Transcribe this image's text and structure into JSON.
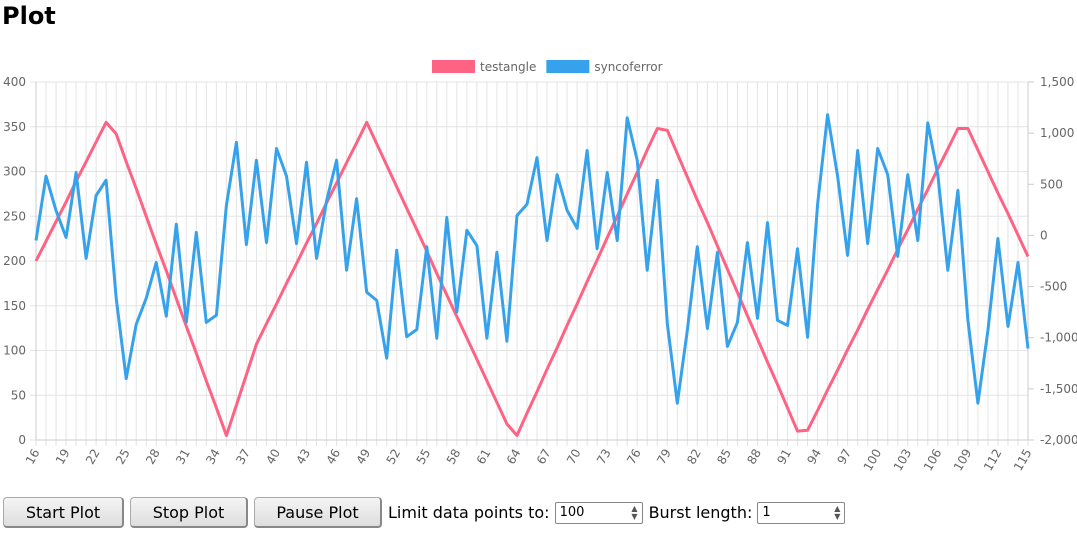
{
  "header": {
    "title": "Plot"
  },
  "chart_data": {
    "type": "line",
    "x": [
      16,
      17,
      18,
      19,
      20,
      21,
      22,
      23,
      24,
      25,
      26,
      27,
      28,
      29,
      30,
      31,
      32,
      33,
      34,
      35,
      36,
      37,
      38,
      39,
      40,
      41,
      42,
      43,
      44,
      45,
      46,
      47,
      48,
      49,
      50,
      51,
      52,
      53,
      54,
      55,
      56,
      57,
      58,
      59,
      60,
      61,
      62,
      63,
      64,
      65,
      66,
      67,
      68,
      69,
      70,
      71,
      72,
      73,
      74,
      75,
      76,
      77,
      78,
      79,
      80,
      81,
      82,
      83,
      84,
      85,
      86,
      87,
      88,
      89,
      90,
      91,
      92,
      93,
      94,
      95,
      96,
      97,
      98,
      99,
      100,
      101,
      102,
      103,
      104,
      105,
      106,
      107,
      108,
      109,
      110,
      111,
      112,
      113,
      114,
      115
    ],
    "xlim": [
      16,
      115
    ],
    "xticks": [
      16,
      19,
      22,
      25,
      28,
      31,
      34,
      37,
      40,
      43,
      46,
      49,
      52,
      55,
      58,
      61,
      64,
      67,
      70,
      73,
      76,
      79,
      82,
      85,
      88,
      91,
      94,
      97,
      100,
      103,
      106,
      109,
      112,
      115
    ],
    "ylim": [
      0,
      400
    ],
    "yticks": [
      0,
      50,
      100,
      150,
      200,
      250,
      300,
      350,
      400
    ],
    "y2lim": [
      -2000,
      1500
    ],
    "y2ticks": [
      {
        "value": -2000,
        "label": "-2,000"
      },
      {
        "value": -1500,
        "label": "-1,500"
      },
      {
        "value": -1000,
        "label": "-1,000"
      },
      -500,
      0,
      500,
      {
        "value": 1000,
        "label": "1,000"
      },
      {
        "value": 1500,
        "label": "1,500"
      }
    ],
    "grid": true,
    "legend": "top",
    "series": [
      {
        "name": "testangle",
        "color": "#ff6384",
        "values": [
          200,
          222,
          244,
          266,
          289,
          311,
          333,
          355,
          342,
          311,
          281,
          250,
          219,
          189,
          158,
          127,
          97,
          66,
          36,
          5,
          39,
          73,
          107,
          130,
          152,
          175,
          197,
          220,
          242,
          265,
          287,
          310,
          332,
          355,
          331,
          307,
          283,
          259,
          235,
          211,
          186,
          162,
          138,
          114,
          90,
          66,
          42,
          18,
          5,
          30,
          54,
          79,
          103,
          128,
          152,
          177,
          201,
          226,
          250,
          275,
          299,
          324,
          348,
          346,
          320,
          294,
          268,
          243,
          217,
          191,
          165,
          139,
          113,
          87,
          62,
          36,
          10,
          11,
          33,
          56,
          78,
          101,
          123,
          146,
          168,
          190,
          213,
          235,
          258,
          280,
          303,
          325,
          348,
          348,
          324,
          300,
          276,
          253,
          229,
          205
        ]
      },
      {
        "name": "syncoferror",
        "color": "#36a2eb",
        "axis": "y2",
        "values": [
          -50,
          580,
          245,
          -20,
          615,
          -225,
          390,
          540,
          -615,
          -1400,
          -870,
          -615,
          -265,
          -790,
          110,
          -850,
          30,
          -850,
          -780,
          295,
          910,
          -90,
          735,
          -70,
          850,
          580,
          -80,
          715,
          -225,
          340,
          735,
          -340,
          360,
          -555,
          -635,
          -1200,
          -145,
          -990,
          -920,
          -110,
          -1005,
          175,
          -750,
          50,
          -100,
          -1005,
          -165,
          -1035,
          195,
          305,
          760,
          -50,
          595,
          245,
          70,
          830,
          -130,
          615,
          -50,
          1150,
          735,
          -340,
          540,
          -860,
          -1640,
          -930,
          -110,
          -910,
          -165,
          -1085,
          -850,
          -70,
          -810,
          125,
          -830,
          -880,
          -130,
          -995,
          305,
          1180,
          580,
          -195,
          830,
          -80,
          850,
          595,
          -205,
          595,
          -50,
          1100,
          595,
          -340,
          440,
          -830,
          -1640,
          -930,
          -30,
          -890,
          -265,
          -1105
        ]
      }
    ]
  },
  "controls": {
    "buttons": [
      "Start Plot",
      "Stop Plot",
      "Pause Plot"
    ],
    "limit_label": "Limit data points to:",
    "limit_value": "100",
    "burst_label": "Burst length:",
    "burst_value": "1"
  }
}
